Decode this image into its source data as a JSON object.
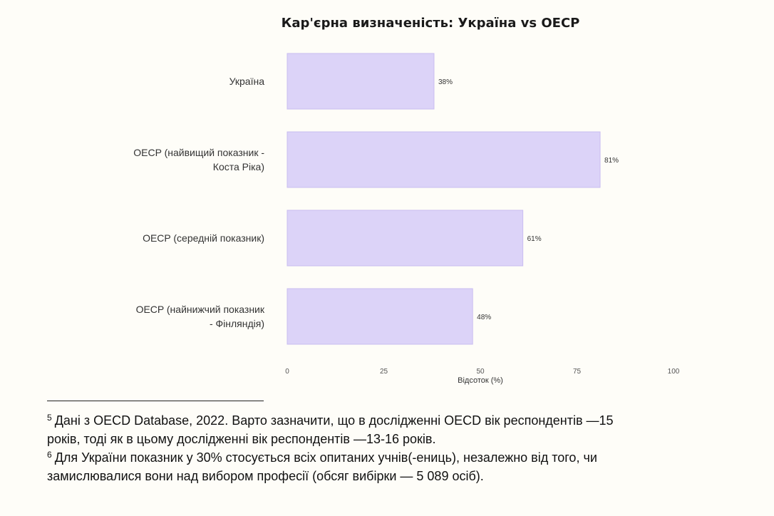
{
  "chart_data": {
    "type": "bar",
    "orientation": "horizontal",
    "title": "Кар'єрна визначеність: Україна vs OECP",
    "categories": [
      [
        "Україна"
      ],
      [
        "OECP (найвищий показник -",
        "Коста Ріка)"
      ],
      [
        "OECP (середній показник)"
      ],
      [
        "OECP (найнижчий показник",
        "- Фінляндія)"
      ]
    ],
    "values": [
      38,
      81,
      61,
      48
    ],
    "value_labels": [
      "38%",
      "81%",
      "61%",
      "48%"
    ],
    "xlabel": "Відсоток (%)",
    "ylabel": "",
    "xlim": [
      0,
      100
    ],
    "xticks": [
      0,
      25,
      50,
      75,
      100
    ],
    "grid": false,
    "bar_color": "#dcd3f8",
    "bar_border": "#c9bdf0"
  },
  "footnotes": [
    {
      "mark": "5",
      "lines": [
        "Дані з OECD Database, 2022. Варто зазначити, що в дослідженні OECD вік респондентів —15",
        "років, тоді як в цьому дослідженні вік респондентів —13-16 років."
      ]
    },
    {
      "mark": "6",
      "lines": [
        "Для України показник у 30% стосується всіх опитаних учнів(-ениць), незалежно від того, чи",
        "замислювалися вони над вибором професії (обсяг вибірки — 5 089 осіб)."
      ]
    }
  ]
}
